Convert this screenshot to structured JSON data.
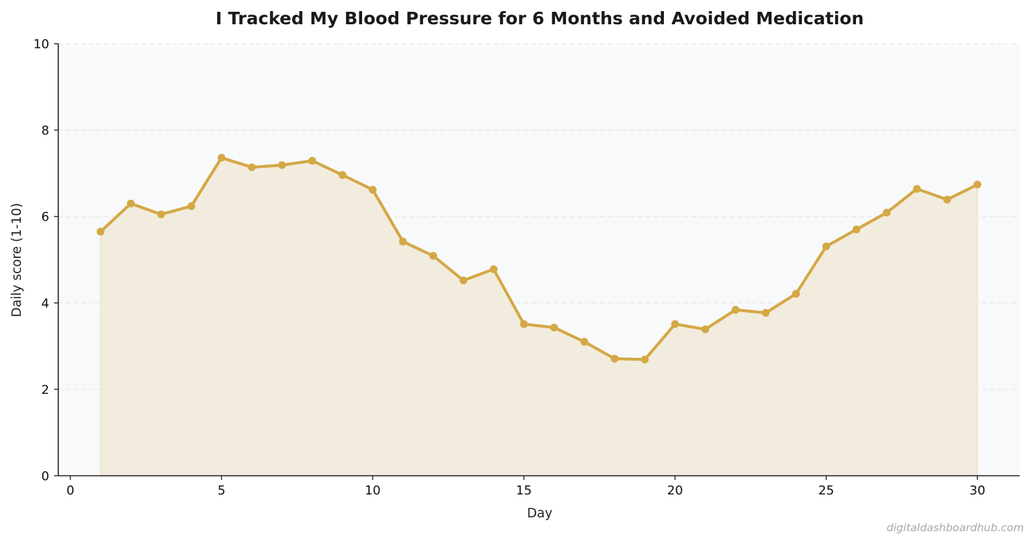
{
  "chart_data": {
    "type": "area",
    "title": "I Tracked My Blood Pressure for 6 Months and Avoided Medication",
    "xlabel": "Day",
    "ylabel": "Daily score (1-10)",
    "xlim": [
      -0.4,
      31.4
    ],
    "ylim": [
      0,
      10
    ],
    "x_ticks": [
      0,
      5,
      10,
      15,
      20,
      25,
      30
    ],
    "y_ticks": [
      0,
      2,
      4,
      6,
      8,
      10
    ],
    "grid": "y-dashed",
    "legend": "none",
    "series": [
      {
        "x": [
          1,
          2,
          3,
          4,
          5,
          6,
          7,
          8,
          9,
          10,
          11,
          12,
          13,
          14,
          15,
          16,
          17,
          18,
          19,
          20,
          21,
          22,
          23,
          24,
          25,
          26,
          27,
          28,
          29,
          30
        ],
        "values": [
          5.65,
          6.3,
          6.05,
          6.24,
          7.36,
          7.14,
          7.19,
          7.29,
          6.96,
          6.62,
          5.42,
          5.09,
          4.52,
          4.78,
          3.51,
          3.43,
          3.1,
          2.71,
          2.69,
          3.51,
          3.39,
          3.84,
          3.77,
          4.21,
          5.31,
          5.7,
          6.09,
          6.64,
          6.39,
          6.74
        ]
      }
    ],
    "colors": {
      "line": "#d4a845",
      "fill": "#f2ecdf",
      "plot_background": "#f8f9fb",
      "grid": "#e3e5e8",
      "axis": "#222222"
    },
    "watermark": "digitaldashboardhub.com"
  }
}
